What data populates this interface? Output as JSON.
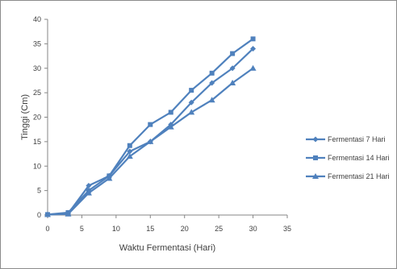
{
  "chart_data": {
    "type": "line",
    "xlabel": "Waktu Fermentasi (Hari)",
    "ylabel": "Tinggi (Cm)",
    "xlim": [
      0,
      35
    ],
    "ylim": [
      0,
      40
    ],
    "x_ticks": [
      "0",
      "5",
      "10",
      "15",
      "20",
      "25",
      "30",
      "35"
    ],
    "y_ticks": [
      "0",
      "5",
      "10",
      "15",
      "20",
      "25",
      "30",
      "35",
      "40"
    ],
    "x": [
      0,
      3,
      6,
      9,
      12,
      15,
      18,
      21,
      24,
      27,
      30
    ],
    "series": [
      {
        "name": "Fermentasi 7 Hari",
        "marker": "diamond",
        "color": "#4F81BD",
        "values": [
          0.1,
          0.3,
          6.0,
          8.0,
          13.0,
          15.0,
          18.5,
          23.0,
          27.0,
          30.0,
          34.0
        ]
      },
      {
        "name": "Fermentasi 14 Hari",
        "marker": "square",
        "color": "#4F81BD",
        "values": [
          0.1,
          0.5,
          5.0,
          8.0,
          14.2,
          18.5,
          21.0,
          25.5,
          29.0,
          33.0,
          36.0
        ]
      },
      {
        "name": "Fermentasi 21 Hari",
        "marker": "triangle",
        "color": "#4F81BD",
        "values": [
          0.1,
          0.2,
          4.5,
          7.5,
          12.0,
          15.0,
          18.0,
          21.0,
          23.5,
          27.0,
          30.0
        ]
      }
    ],
    "grid": false,
    "legend_position": "right"
  }
}
